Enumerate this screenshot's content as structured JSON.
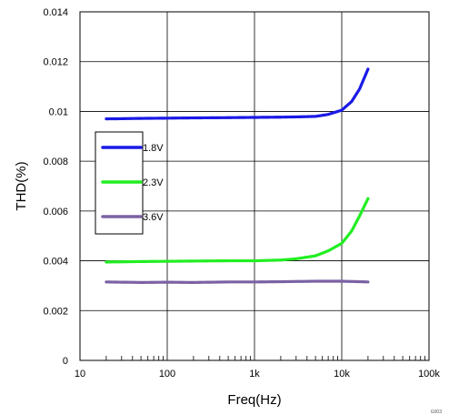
{
  "chart_data": {
    "type": "line",
    "xlabel": "Freq(Hz)",
    "ylabel": "THD(%)",
    "x_scale": "log",
    "xlim": [
      10,
      100000
    ],
    "ylim": [
      0,
      0.014
    ],
    "grid": true,
    "legend_position": "left",
    "x_tick_labels": [
      "10",
      "100",
      "1k",
      "10k",
      "100k"
    ],
    "y_tick_labels": [
      "0",
      "0.002",
      "0.004",
      "0.006",
      "0.008",
      "0.01",
      "0.012",
      "0.014"
    ],
    "series": [
      {
        "name": "1.8V",
        "color": "#1a1ae6",
        "x": [
          20,
          50,
          100,
          200,
          500,
          1000,
          2000,
          3000,
          5000,
          7000,
          10000,
          13000,
          16000,
          20000
        ],
        "y": [
          0.0097,
          0.00972,
          0.00973,
          0.00974,
          0.00975,
          0.00976,
          0.00977,
          0.00978,
          0.0098,
          0.00988,
          0.01005,
          0.0104,
          0.0109,
          0.0117
        ]
      },
      {
        "name": "2.3V",
        "color": "#22ee22",
        "x": [
          20,
          50,
          100,
          200,
          500,
          1000,
          2000,
          3000,
          5000,
          7000,
          10000,
          13000,
          16000,
          20000
        ],
        "y": [
          0.00395,
          0.00397,
          0.00398,
          0.00399,
          0.004,
          0.004,
          0.00403,
          0.00408,
          0.0042,
          0.0044,
          0.0047,
          0.0052,
          0.0058,
          0.0065
        ]
      },
      {
        "name": "3.6V",
        "color": "#7b62a3",
        "x": [
          20,
          50,
          100,
          200,
          500,
          1000,
          2000,
          5000,
          10000,
          20000
        ],
        "y": [
          0.00315,
          0.00313,
          0.00314,
          0.00313,
          0.00315,
          0.00315,
          0.00316,
          0.00318,
          0.00318,
          0.00315
        ]
      }
    ],
    "footnote": "G003"
  }
}
